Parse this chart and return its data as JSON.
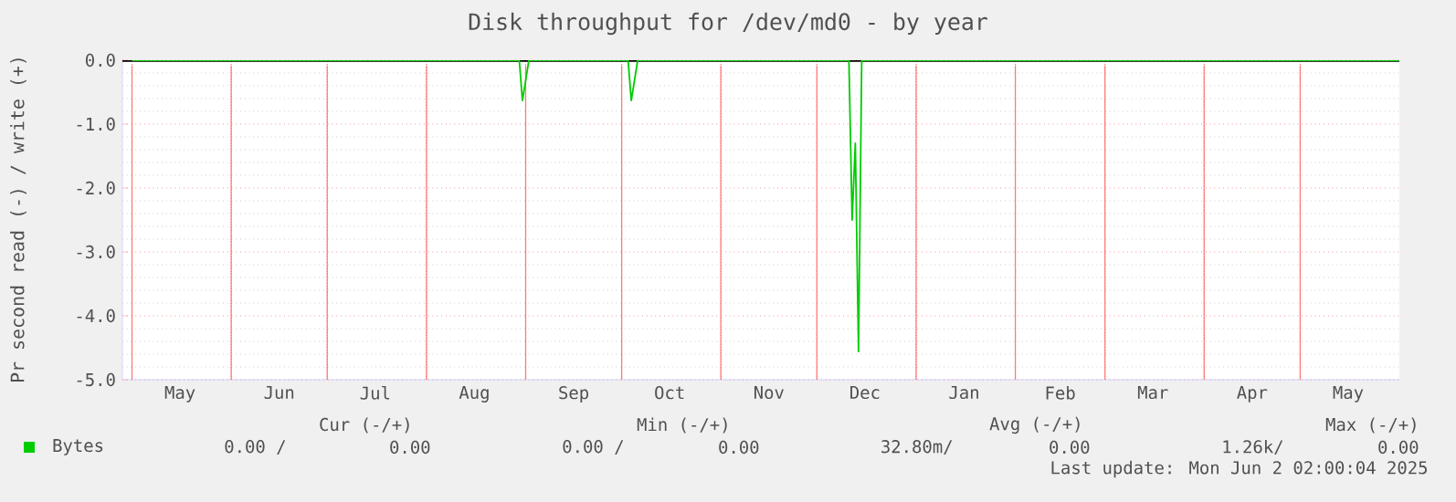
{
  "chart_data": {
    "type": "line",
    "title": "Disk throughput for /dev/md0 - by year",
    "ylabel": "Pr second read (-) / write (+)",
    "x": [
      "2024-05-01",
      "2024-08-30",
      "2024-08-31",
      "2024-09-02",
      "2024-10-03",
      "2024-10-04",
      "2024-10-06",
      "2024-12-11",
      "2024-12-12",
      "2024-12-13",
      "2024-12-14",
      "2024-12-15",
      "2025-06-01"
    ],
    "series": [
      {
        "name": "Bytes",
        "color": "#00cc00",
        "values": [
          0,
          0,
          -0.63,
          0,
          0,
          -0.63,
          0,
          0,
          -2.5,
          -1.3,
          -4.56,
          0,
          0
        ]
      }
    ],
    "xlim": [
      "2024-04-28",
      "2025-06-01"
    ],
    "xticks": [
      {
        "value": "2024-05-01",
        "label": null
      },
      {
        "value": "2024-06-01",
        "label": null
      },
      {
        "value": "2024-07-01",
        "label": null
      },
      {
        "value": "2024-08-01",
        "label": null
      },
      {
        "value": "2024-09-01",
        "label": null
      },
      {
        "value": "2024-10-01",
        "label": null
      },
      {
        "value": "2024-11-01",
        "label": null
      },
      {
        "value": "2024-12-01",
        "label": null
      },
      {
        "value": "2025-01-01",
        "label": null
      },
      {
        "value": "2025-02-01",
        "label": null
      },
      {
        "value": "2025-03-01",
        "label": null
      },
      {
        "value": "2025-04-01",
        "label": null
      },
      {
        "value": "2025-05-01",
        "label": null
      },
      {
        "value": "2024-05-16",
        "label": "May"
      },
      {
        "value": "2024-06-16",
        "label": "Jun"
      },
      {
        "value": "2024-07-16",
        "label": "Jul"
      },
      {
        "value": "2024-08-16",
        "label": "Aug"
      },
      {
        "value": "2024-09-16",
        "label": "Sep"
      },
      {
        "value": "2024-10-16",
        "label": "Oct"
      },
      {
        "value": "2024-11-16",
        "label": "Nov"
      },
      {
        "value": "2024-12-16",
        "label": "Dec"
      },
      {
        "value": "2025-01-16",
        "label": "Jan"
      },
      {
        "value": "2025-02-15",
        "label": "Feb"
      },
      {
        "value": "2025-03-16",
        "label": "Mar"
      },
      {
        "value": "2025-04-16",
        "label": "Apr"
      },
      {
        "value": "2025-05-16",
        "label": "May"
      }
    ],
    "ylim": [
      -5,
      0
    ],
    "yticks": [
      {
        "value": -5,
        "label": "-5.0"
      },
      {
        "value": -4,
        "label": "-4.0"
      },
      {
        "value": -3,
        "label": "-3.0"
      },
      {
        "value": -2,
        "label": "-2.0"
      },
      {
        "value": -1,
        "label": "-1.0"
      },
      {
        "value": 0,
        "label": "0.0"
      }
    ],
    "grid": true,
    "legend": "bottom",
    "ref_lines": [
      {
        "axis": "y",
        "value": 0,
        "color": "#000000"
      }
    ],
    "annotations": [
      "Cur (-/+)",
      "Min (-/+)",
      "Avg (-/+)",
      "Max (-/+)",
      "0.00 /",
      "0.00",
      "0.00 /",
      "0.00",
      "32.80m/",
      "0.00",
      "1.26k/",
      "0.00",
      "Last update: Mon Jun  2 02:00:04 2025"
    ]
  }
}
